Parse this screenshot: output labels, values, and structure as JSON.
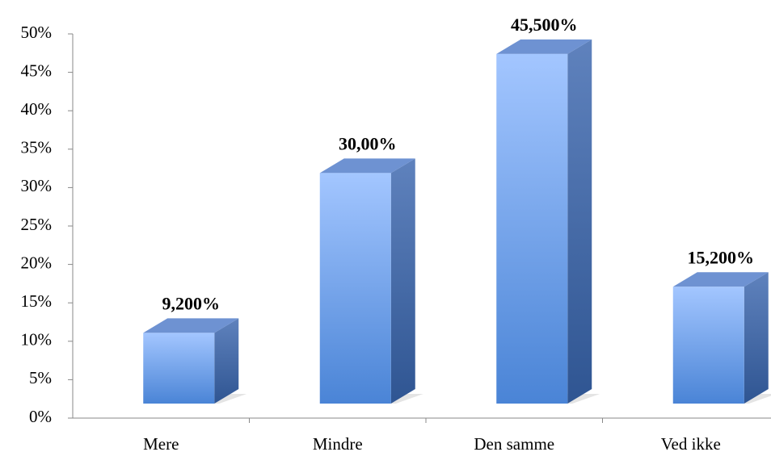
{
  "chart_data": {
    "type": "bar3d",
    "categories": [
      "Mere",
      "Mindre",
      "Den samme",
      "Ved ikke"
    ],
    "values": [
      9.2,
      30.0,
      45.5,
      15.2
    ],
    "value_labels": [
      "9,200%",
      "30,00%",
      "45,500%",
      "15,200%"
    ],
    "color": "#5b8fe0",
    "ylim": [
      0,
      50
    ],
    "yticks": [
      {
        "value": 0,
        "label": "0%"
      },
      {
        "value": 5,
        "label": "5%"
      },
      {
        "value": 10,
        "label": "10%"
      },
      {
        "value": 15,
        "label": "15%"
      },
      {
        "value": 20,
        "label": "20%"
      },
      {
        "value": 25,
        "label": "25%"
      },
      {
        "value": 30,
        "label": "30%"
      },
      {
        "value": 35,
        "label": "35%"
      },
      {
        "value": 40,
        "label": "40%"
      },
      {
        "value": 45,
        "label": "45%"
      },
      {
        "value": 50,
        "label": "50%"
      }
    ],
    "grid": false
  }
}
